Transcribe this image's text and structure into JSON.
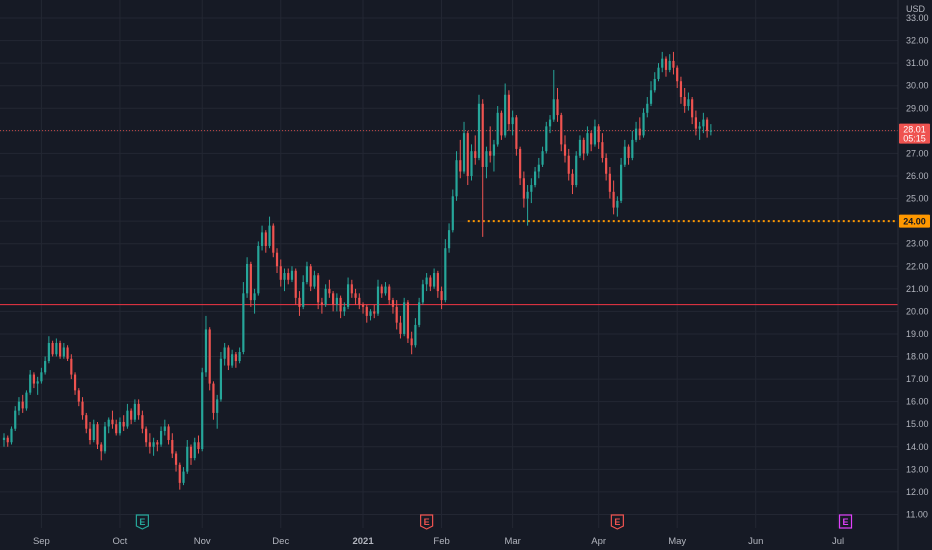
{
  "chart_data": {
    "type": "candlestick",
    "y_unit_label": "USD",
    "ylim": [
      10.4,
      33.8
    ],
    "y_ticks": [
      "33.00",
      "32.00",
      "31.00",
      "30.00",
      "29.00",
      "28.00",
      "27.00",
      "26.00",
      "25.00",
      "24.00",
      "23.00",
      "22.00",
      "21.00",
      "20.00",
      "19.00",
      "18.00",
      "17.00",
      "16.00",
      "15.00",
      "14.00",
      "13.00",
      "12.00",
      "11.00"
    ],
    "x_ticks": [
      {
        "label": "Sep",
        "bar": 10,
        "bold": false
      },
      {
        "label": "Oct",
        "bar": 31,
        "bold": false
      },
      {
        "label": "Nov",
        "bar": 53,
        "bold": false
      },
      {
        "label": "Dec",
        "bar": 74,
        "bold": false
      },
      {
        "label": "2021",
        "bar": 96,
        "bold": true
      },
      {
        "label": "Feb",
        "bar": 117,
        "bold": false
      },
      {
        "label": "Mar",
        "bar": 136,
        "bold": false
      },
      {
        "label": "Apr",
        "bar": 159,
        "bold": false
      },
      {
        "label": "May",
        "bar": 180,
        "bold": false
      },
      {
        "label": "Jun",
        "bar": 201,
        "bold": false
      },
      {
        "label": "Jul",
        "bar": 223,
        "bold": false
      }
    ],
    "colors": {
      "background": "#161a25",
      "grid": "#232733",
      "up": "#26a69a",
      "down": "#ef5350",
      "support_line": "#f23645",
      "dotted_line": "#ff9800",
      "earnings_past": "#ef5350",
      "earnings_dividend": "#26a69a",
      "earnings_future": "#e040fb"
    },
    "horizontal_lines": [
      {
        "price": 20.3,
        "style": "solid",
        "color": "#f23645"
      },
      {
        "price": 24.0,
        "style": "dotted",
        "color": "#ff9800",
        "label": "24.00",
        "from_bar": 124
      }
    ],
    "current_price": {
      "value": "28.01",
      "sub": "05:15",
      "price": 28.01
    },
    "earnings_markers": [
      {
        "bar": 37,
        "letter": "E",
        "kind": "dividend"
      },
      {
        "bar": 113,
        "letter": "E",
        "kind": "past"
      },
      {
        "bar": 164,
        "letter": "E",
        "kind": "past"
      },
      {
        "bar": 225,
        "letter": "E",
        "kind": "future"
      }
    ],
    "candles": [
      [
        14.3,
        14.6,
        14.0,
        14.4
      ],
      [
        14.4,
        14.5,
        14.0,
        14.2
      ],
      [
        14.2,
        14.9,
        14.1,
        14.8
      ],
      [
        14.8,
        15.8,
        14.7,
        15.6
      ],
      [
        15.6,
        16.2,
        15.4,
        16.0
      ],
      [
        16.0,
        16.3,
        15.5,
        15.7
      ],
      [
        15.7,
        16.5,
        15.6,
        16.4
      ],
      [
        16.4,
        17.4,
        16.3,
        17.2
      ],
      [
        17.2,
        17.3,
        16.6,
        16.8
      ],
      [
        16.8,
        17.1,
        16.3,
        16.9
      ],
      [
        16.9,
        17.5,
        16.8,
        17.3
      ],
      [
        17.3,
        18.0,
        17.2,
        17.8
      ],
      [
        17.8,
        18.9,
        17.7,
        18.6
      ],
      [
        18.6,
        18.7,
        18.0,
        18.1
      ],
      [
        18.1,
        18.8,
        18.0,
        18.6
      ],
      [
        18.6,
        18.7,
        17.9,
        18.0
      ],
      [
        18.0,
        18.6,
        17.9,
        18.4
      ],
      [
        18.4,
        18.5,
        17.8,
        17.9
      ],
      [
        17.9,
        18.1,
        17.0,
        17.2
      ],
      [
        17.2,
        17.3,
        16.3,
        16.5
      ],
      [
        16.5,
        16.6,
        15.8,
        16.0
      ],
      [
        16.0,
        16.2,
        15.2,
        15.4
      ],
      [
        15.4,
        15.5,
        14.6,
        14.8
      ],
      [
        14.8,
        15.1,
        14.1,
        14.3
      ],
      [
        14.3,
        15.2,
        14.2,
        15.0
      ],
      [
        15.0,
        15.1,
        13.9,
        14.1
      ],
      [
        14.1,
        14.2,
        13.4,
        13.8
      ],
      [
        13.8,
        15.1,
        13.7,
        14.9
      ],
      [
        14.9,
        15.3,
        14.6,
        15.2
      ],
      [
        15.2,
        15.6,
        14.8,
        15.0
      ],
      [
        15.0,
        15.2,
        14.5,
        14.6
      ],
      [
        14.6,
        15.3,
        14.5,
        15.1
      ],
      [
        15.1,
        15.4,
        14.7,
        14.9
      ],
      [
        14.9,
        15.9,
        14.8,
        15.6
      ],
      [
        15.6,
        15.7,
        15.0,
        15.2
      ],
      [
        15.2,
        16.1,
        15.1,
        15.9
      ],
      [
        15.9,
        16.1,
        15.2,
        15.4
      ],
      [
        15.4,
        15.6,
        14.6,
        14.8
      ],
      [
        14.8,
        14.9,
        14.0,
        14.2
      ],
      [
        14.2,
        14.6,
        13.7,
        14.0
      ],
      [
        14.0,
        14.4,
        13.6,
        14.2
      ],
      [
        14.2,
        14.3,
        13.8,
        14.1
      ],
      [
        14.1,
        14.9,
        14.0,
        14.7
      ],
      [
        14.7,
        15.2,
        14.5,
        14.9
      ],
      [
        14.9,
        15.0,
        14.1,
        14.3
      ],
      [
        14.3,
        14.6,
        13.5,
        13.7
      ],
      [
        13.7,
        13.8,
        12.9,
        13.2
      ],
      [
        13.2,
        13.3,
        12.1,
        12.4
      ],
      [
        12.4,
        13.1,
        12.3,
        12.9
      ],
      [
        12.9,
        14.3,
        12.8,
        14.0
      ],
      [
        14.0,
        14.1,
        13.2,
        13.5
      ],
      [
        13.5,
        14.4,
        13.4,
        14.2
      ],
      [
        14.2,
        14.5,
        13.7,
        13.9
      ],
      [
        13.9,
        17.5,
        13.8,
        17.3
      ],
      [
        17.3,
        19.8,
        17.1,
        19.2
      ],
      [
        19.2,
        19.3,
        16.5,
        16.8
      ],
      [
        16.8,
        16.9,
        15.2,
        15.5
      ],
      [
        15.5,
        16.3,
        14.8,
        16.1
      ],
      [
        16.1,
        18.2,
        16.0,
        17.9
      ],
      [
        17.9,
        18.6,
        17.6,
        18.4
      ],
      [
        18.4,
        18.5,
        17.4,
        17.6
      ],
      [
        17.6,
        18.3,
        17.5,
        18.1
      ],
      [
        18.1,
        18.2,
        17.5,
        17.8
      ],
      [
        17.8,
        18.4,
        17.7,
        18.2
      ],
      [
        18.2,
        21.3,
        18.1,
        20.8
      ],
      [
        20.8,
        22.4,
        20.6,
        22.1
      ],
      [
        22.1,
        22.2,
        20.2,
        20.5
      ],
      [
        20.5,
        21.0,
        19.9,
        20.8
      ],
      [
        20.8,
        23.1,
        20.7,
        22.9
      ],
      [
        22.9,
        23.8,
        22.7,
        23.5
      ],
      [
        23.5,
        23.6,
        22.6,
        22.9
      ],
      [
        22.9,
        24.2,
        22.8,
        23.8
      ],
      [
        23.8,
        23.9,
        22.4,
        22.6
      ],
      [
        22.6,
        22.8,
        21.7,
        22.0
      ],
      [
        22.0,
        22.3,
        21.1,
        21.4
      ],
      [
        21.4,
        21.9,
        20.9,
        21.7
      ],
      [
        21.7,
        21.9,
        21.2,
        21.4
      ],
      [
        21.4,
        22.0,
        21.3,
        21.8
      ],
      [
        21.8,
        21.9,
        20.3,
        20.6
      ],
      [
        20.6,
        20.9,
        19.8,
        20.2
      ],
      [
        20.2,
        21.6,
        20.1,
        21.3
      ],
      [
        21.3,
        22.2,
        21.2,
        22.0
      ],
      [
        22.0,
        22.1,
        20.9,
        21.1
      ],
      [
        21.1,
        21.8,
        21.0,
        21.6
      ],
      [
        21.6,
        21.7,
        20.1,
        20.4
      ],
      [
        20.4,
        20.6,
        19.9,
        20.3
      ],
      [
        20.3,
        21.2,
        20.2,
        21.0
      ],
      [
        21.0,
        21.4,
        20.6,
        20.8
      ],
      [
        20.8,
        20.9,
        20.0,
        20.3
      ],
      [
        20.3,
        20.8,
        20.0,
        20.6
      ],
      [
        20.6,
        20.7,
        19.7,
        20.0
      ],
      [
        20.0,
        20.4,
        19.8,
        20.2
      ],
      [
        20.2,
        21.5,
        20.1,
        21.2
      ],
      [
        21.2,
        21.4,
        20.6,
        20.8
      ],
      [
        20.8,
        21.0,
        20.3,
        20.6
      ],
      [
        20.6,
        20.8,
        20.1,
        20.3
      ],
      [
        20.3,
        20.4,
        19.9,
        20.2
      ],
      [
        20.2,
        20.3,
        19.5,
        19.8
      ],
      [
        19.8,
        20.1,
        19.6,
        20.0
      ],
      [
        20.0,
        20.3,
        19.7,
        19.9
      ],
      [
        19.9,
        21.4,
        19.8,
        21.1
      ],
      [
        21.1,
        21.2,
        20.6,
        20.8
      ],
      [
        20.8,
        21.3,
        20.7,
        21.1
      ],
      [
        21.1,
        21.2,
        20.3,
        20.5
      ],
      [
        20.5,
        20.6,
        19.9,
        20.2
      ],
      [
        20.2,
        20.5,
        19.2,
        19.5
      ],
      [
        19.5,
        19.8,
        18.8,
        19.0
      ],
      [
        19.0,
        20.6,
        18.9,
        20.4
      ],
      [
        20.4,
        20.5,
        18.6,
        18.8
      ],
      [
        18.8,
        19.1,
        18.1,
        18.5
      ],
      [
        18.5,
        19.7,
        18.4,
        19.4
      ],
      [
        19.4,
        20.6,
        19.3,
        20.4
      ],
      [
        20.4,
        21.4,
        20.3,
        21.2
      ],
      [
        21.2,
        21.7,
        20.9,
        21.5
      ],
      [
        21.5,
        21.6,
        20.9,
        21.1
      ],
      [
        21.1,
        21.9,
        21.0,
        21.7
      ],
      [
        21.7,
        21.8,
        20.6,
        20.9
      ],
      [
        20.9,
        21.1,
        20.1,
        20.5
      ],
      [
        20.5,
        23.2,
        20.4,
        22.8
      ],
      [
        22.8,
        23.9,
        22.6,
        23.6
      ],
      [
        23.6,
        25.4,
        23.5,
        25.1
      ],
      [
        25.1,
        27.1,
        24.9,
        26.7
      ],
      [
        26.7,
        27.6,
        25.9,
        26.2
      ],
      [
        26.2,
        28.4,
        26.1,
        27.9
      ],
      [
        27.9,
        28.0,
        25.6,
        26.0
      ],
      [
        26.0,
        27.4,
        25.8,
        27.1
      ],
      [
        27.1,
        27.8,
        26.5,
        26.8
      ],
      [
        26.8,
        29.6,
        26.7,
        29.2
      ],
      [
        29.2,
        29.4,
        23.3,
        26.4
      ],
      [
        26.4,
        27.3,
        25.9,
        27.1
      ],
      [
        27.1,
        28.2,
        26.6,
        26.9
      ],
      [
        26.9,
        27.6,
        26.2,
        27.4
      ],
      [
        27.4,
        29.1,
        27.3,
        28.8
      ],
      [
        28.8,
        28.9,
        27.6,
        27.8
      ],
      [
        27.8,
        30.1,
        27.7,
        29.6
      ],
      [
        29.6,
        29.8,
        28.0,
        28.3
      ],
      [
        28.3,
        28.9,
        27.8,
        28.6
      ],
      [
        28.6,
        28.7,
        26.9,
        27.2
      ],
      [
        27.2,
        27.3,
        25.6,
        25.9
      ],
      [
        25.9,
        26.2,
        24.6,
        25.0
      ],
      [
        25.0,
        25.6,
        23.8,
        25.3
      ],
      [
        25.3,
        25.9,
        24.8,
        25.6
      ],
      [
        25.6,
        26.4,
        25.5,
        26.2
      ],
      [
        26.2,
        26.8,
        25.9,
        26.5
      ],
      [
        26.5,
        27.3,
        26.4,
        27.1
      ],
      [
        27.1,
        28.4,
        27.0,
        28.2
      ],
      [
        28.2,
        28.7,
        27.9,
        28.5
      ],
      [
        28.5,
        30.7,
        28.4,
        29.4
      ],
      [
        29.4,
        29.9,
        28.4,
        28.7
      ],
      [
        28.7,
        28.8,
        27.1,
        27.4
      ],
      [
        27.4,
        27.8,
        26.6,
        26.9
      ],
      [
        26.9,
        27.2,
        25.8,
        26.1
      ],
      [
        26.1,
        26.3,
        25.2,
        25.6
      ],
      [
        25.6,
        27.1,
        25.5,
        26.9
      ],
      [
        26.9,
        27.8,
        26.8,
        27.6
      ],
      [
        27.6,
        27.7,
        26.7,
        27.0
      ],
      [
        27.0,
        28.2,
        26.9,
        27.9
      ],
      [
        27.9,
        28.0,
        27.1,
        27.4
      ],
      [
        27.4,
        28.5,
        27.3,
        28.2
      ],
      [
        28.2,
        28.3,
        27.2,
        27.5
      ],
      [
        27.5,
        27.9,
        26.6,
        26.8
      ],
      [
        26.8,
        27.0,
        25.8,
        26.1
      ],
      [
        26.1,
        26.4,
        25.0,
        25.3
      ],
      [
        25.3,
        25.8,
        24.3,
        24.6
      ],
      [
        24.6,
        25.1,
        24.2,
        24.9
      ],
      [
        24.9,
        26.8,
        24.8,
        26.5
      ],
      [
        26.5,
        27.6,
        26.4,
        27.3
      ],
      [
        27.3,
        27.4,
        26.5,
        26.8
      ],
      [
        26.8,
        28.0,
        26.7,
        27.6
      ],
      [
        27.6,
        28.4,
        27.5,
        28.1
      ],
      [
        28.1,
        28.6,
        27.6,
        27.8
      ],
      [
        27.8,
        29.0,
        27.7,
        28.8
      ],
      [
        28.8,
        29.5,
        28.6,
        29.2
      ],
      [
        29.2,
        30.2,
        29.1,
        29.8
      ],
      [
        29.8,
        30.6,
        29.7,
        30.3
      ],
      [
        30.3,
        31.0,
        30.2,
        30.8
      ],
      [
        30.8,
        31.5,
        30.6,
        31.2
      ],
      [
        31.2,
        31.3,
        30.4,
        30.7
      ],
      [
        30.7,
        31.4,
        30.6,
        31.1
      ],
      [
        31.1,
        31.5,
        30.5,
        30.8
      ],
      [
        30.8,
        30.9,
        29.9,
        30.2
      ],
      [
        30.2,
        30.4,
        29.2,
        29.5
      ],
      [
        29.5,
        29.9,
        28.8,
        29.1
      ],
      [
        29.1,
        29.7,
        28.9,
        29.4
      ],
      [
        29.4,
        29.5,
        28.3,
        28.6
      ],
      [
        28.6,
        28.9,
        27.8,
        28.1
      ],
      [
        28.1,
        28.4,
        27.6,
        28.2
      ],
      [
        28.2,
        28.8,
        27.9,
        28.5
      ],
      [
        28.5,
        28.6,
        27.7,
        28.0
      ],
      [
        28.0,
        28.3,
        27.8,
        28.01
      ]
    ]
  }
}
